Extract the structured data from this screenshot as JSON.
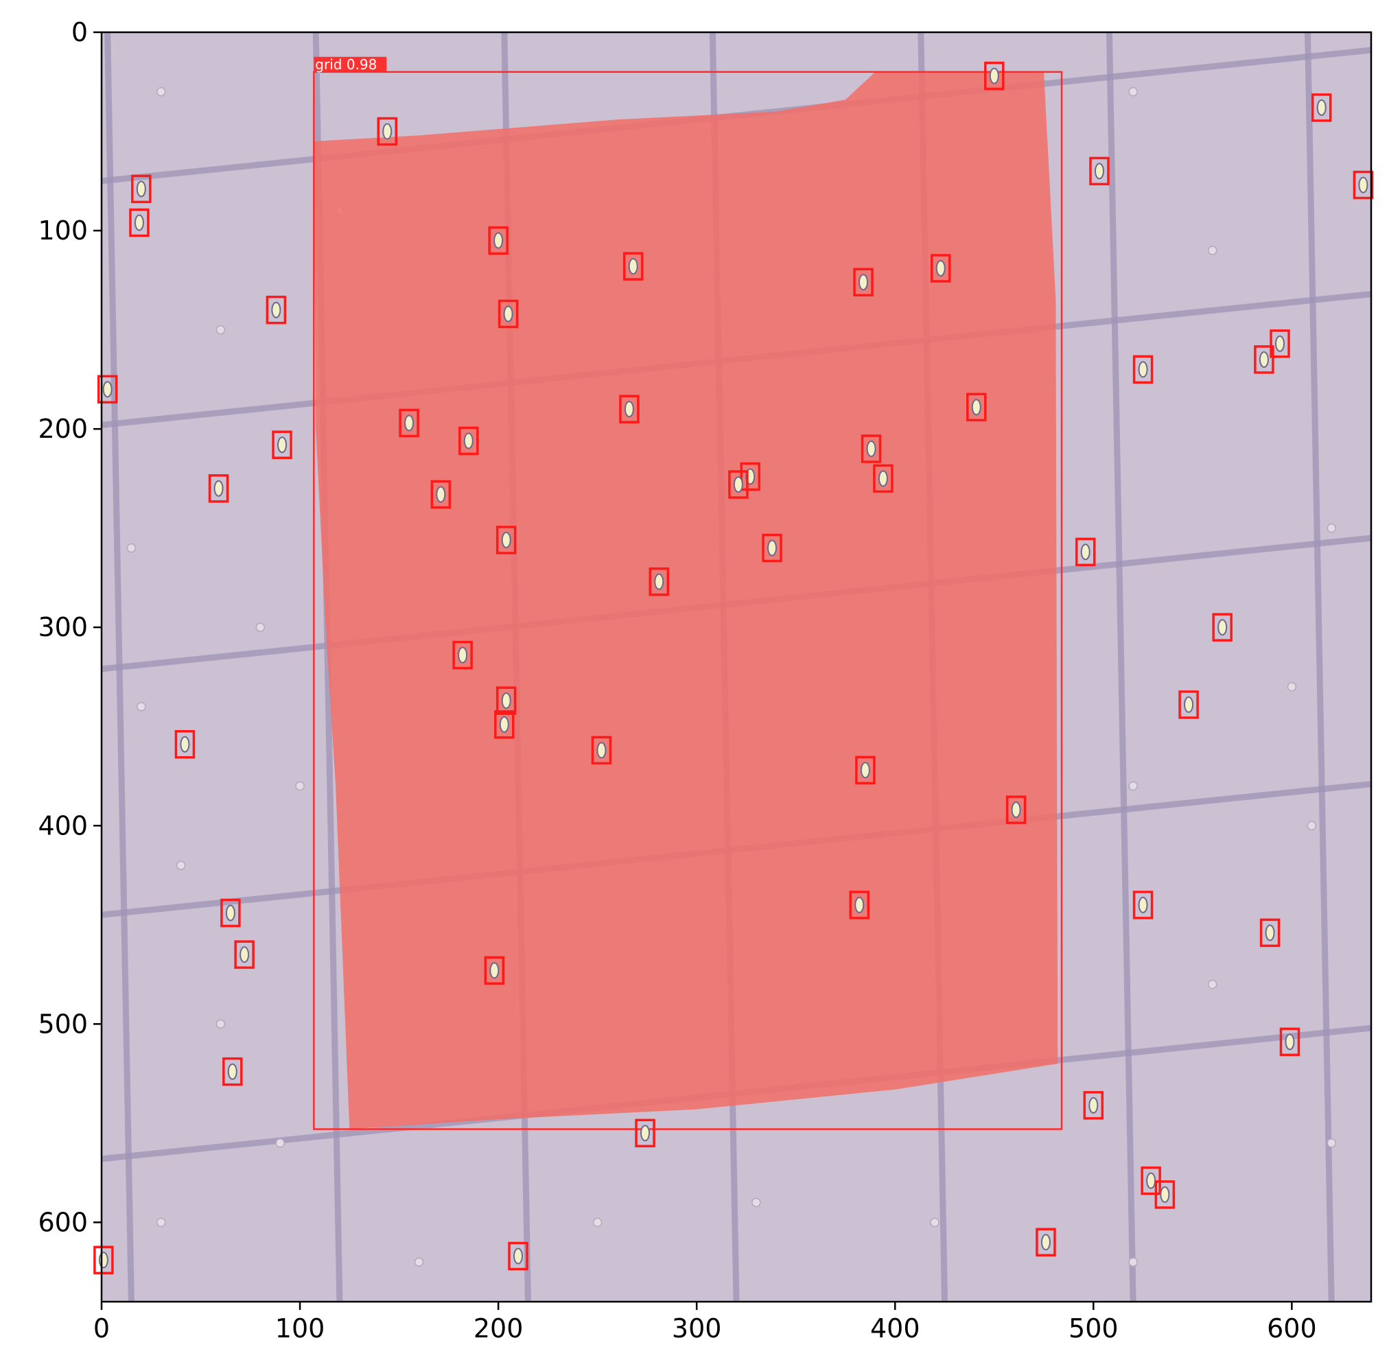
{
  "image": {
    "description_colors": {
      "background_tint": "#c9bfcf",
      "grid_line": "#9a8fb3",
      "mask_fill": "#f0706a",
      "box_stroke": "#ff1a1a",
      "axes_frame": "#000000"
    }
  },
  "axes": {
    "x_ticks": [
      "0",
      "100",
      "200",
      "300",
      "400",
      "500",
      "600"
    ],
    "y_ticks": [
      "0",
      "100",
      "200",
      "300",
      "400",
      "500",
      "600"
    ],
    "xlim": [
      0,
      640
    ],
    "ylim": [
      640,
      0
    ]
  },
  "mask": {
    "label": "grid 0.98",
    "bbox_data": [
      107,
      20,
      484,
      553
    ],
    "polygon_data": [
      [
        107,
        55
      ],
      [
        160,
        52
      ],
      [
        260,
        44
      ],
      [
        340,
        40
      ],
      [
        375,
        34
      ],
      [
        390,
        20
      ],
      [
        475,
        20
      ],
      [
        481,
        135
      ],
      [
        482,
        520
      ],
      [
        400,
        533
      ],
      [
        300,
        543
      ],
      [
        200,
        548
      ],
      [
        125,
        553
      ],
      [
        118,
        380
      ],
      [
        113,
        300
      ],
      [
        108,
        200
      ]
    ]
  },
  "detections": [
    [
      450,
      22
    ],
    [
      144,
      50
    ],
    [
      615,
      38
    ],
    [
      503,
      70
    ],
    [
      636,
      77
    ],
    [
      20,
      79
    ],
    [
      19,
      96
    ],
    [
      200,
      105
    ],
    [
      268,
      118
    ],
    [
      423,
      119
    ],
    [
      384,
      126
    ],
    [
      88,
      140
    ],
    [
      205,
      142
    ],
    [
      594,
      157
    ],
    [
      586,
      165
    ],
    [
      525,
      170
    ],
    [
      3,
      180
    ],
    [
      441,
      189
    ],
    [
      266,
      190
    ],
    [
      155,
      197
    ],
    [
      185,
      206
    ],
    [
      91,
      208
    ],
    [
      388,
      210
    ],
    [
      394,
      225
    ],
    [
      327,
      224
    ],
    [
      321,
      228
    ],
    [
      59,
      230
    ],
    [
      171,
      233
    ],
    [
      204,
      256
    ],
    [
      338,
      260
    ],
    [
      496,
      262
    ],
    [
      281,
      277
    ],
    [
      565,
      300
    ],
    [
      182,
      314
    ],
    [
      204,
      337
    ],
    [
      548,
      339
    ],
    [
      203,
      349
    ],
    [
      42,
      359
    ],
    [
      252,
      362
    ],
    [
      385,
      372
    ],
    [
      461,
      392
    ],
    [
      382,
      440
    ],
    [
      525,
      440
    ],
    [
      65,
      444
    ],
    [
      589,
      454
    ],
    [
      72,
      465
    ],
    [
      198,
      473
    ],
    [
      599,
      509
    ],
    [
      66,
      524
    ],
    [
      500,
      541
    ],
    [
      274,
      555
    ],
    [
      529,
      579
    ],
    [
      536,
      586
    ],
    [
      476,
      610
    ],
    [
      210,
      617
    ],
    [
      1,
      619
    ]
  ]
}
